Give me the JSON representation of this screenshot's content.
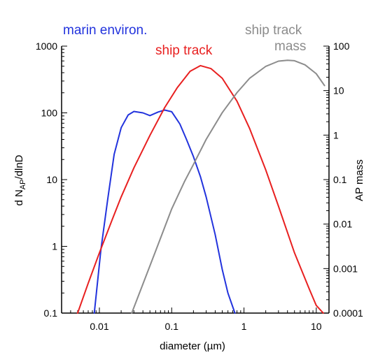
{
  "chart_data": {
    "type": "line",
    "xlabel": "diameter (µm)",
    "ylabel_left_prefix": "d N",
    "ylabel_left_sub": "AP",
    "ylabel_left_suffix": "/dlnD",
    "ylabel_right": "AP mass",
    "x_scale": "log",
    "xlim": [
      0.003,
      15
    ],
    "y_left_scale": "log",
    "y_left_lim": [
      0.1,
      1000
    ],
    "y_right_scale": "log",
    "y_right_lim": [
      0.0001,
      100
    ],
    "x_ticks": [
      0.01,
      0.1,
      1,
      10
    ],
    "x_tick_labels": [
      "0.01",
      "0.1",
      "1",
      "10"
    ],
    "y_left_ticks": [
      0.1,
      1,
      10,
      100,
      1000
    ],
    "y_left_tick_labels": [
      "0.1",
      "1",
      "10",
      "100",
      "1000"
    ],
    "y_right_ticks": [
      0.0001,
      0.001,
      0.01,
      0.1,
      1,
      10,
      100
    ],
    "y_right_tick_labels": [
      "0.0001",
      "0.001",
      "0.01",
      "0.1",
      "1",
      "10",
      "100"
    ],
    "grid": false,
    "series": [
      {
        "name": "marin environ.",
        "color": "#2233dd",
        "axis": "left",
        "x": [
          0.0085,
          0.0105,
          0.013,
          0.016,
          0.02,
          0.025,
          0.03,
          0.04,
          0.05,
          0.065,
          0.08,
          0.1,
          0.13,
          0.16,
          0.2,
          0.25,
          0.3,
          0.4,
          0.5,
          0.6,
          0.75
        ],
        "y": [
          0.1,
          0.9,
          5,
          24,
          60,
          93,
          105,
          100,
          91,
          103,
          110,
          104,
          68,
          40,
          22,
          11,
          5.5,
          1.5,
          0.45,
          0.2,
          0.1
        ]
      },
      {
        "name": "ship track",
        "color": "#e82020",
        "axis": "left",
        "x": [
          0.005,
          0.007,
          0.01,
          0.015,
          0.02,
          0.03,
          0.05,
          0.08,
          0.12,
          0.18,
          0.25,
          0.35,
          0.5,
          0.8,
          1.2,
          2,
          3,
          5,
          8,
          10,
          12.5
        ],
        "y": [
          0.1,
          0.28,
          0.8,
          2.5,
          5.5,
          15,
          46,
          120,
          240,
          420,
          510,
          460,
          330,
          150,
          58,
          14,
          4,
          0.8,
          0.23,
          0.13,
          0.1
        ]
      },
      {
        "name": "ship track mass",
        "label_line1": "ship track",
        "label_line2": "mass",
        "color": "#8c8c8c",
        "axis": "right",
        "x": [
          0.028,
          0.04,
          0.06,
          0.1,
          0.15,
          0.2,
          0.3,
          0.5,
          0.8,
          1.2,
          2,
          3,
          4,
          5,
          7,
          10,
          13
        ],
        "y": [
          0.0001,
          0.00045,
          0.0025,
          0.022,
          0.09,
          0.22,
          0.8,
          3.2,
          9,
          19,
          35,
          46,
          48,
          47,
          38,
          24,
          13
        ]
      }
    ]
  }
}
